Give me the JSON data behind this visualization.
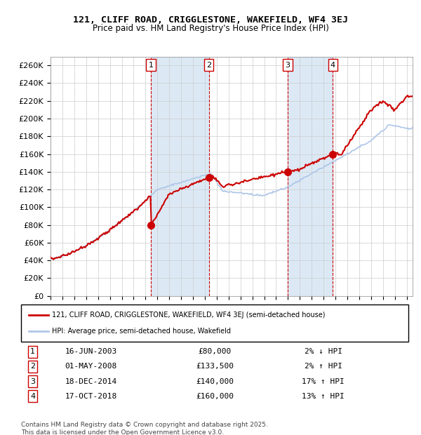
{
  "title": "121, CLIFF ROAD, CRIGGLESTONE, WAKEFIELD, WF4 3EJ",
  "subtitle": "Price paid vs. HM Land Registry's House Price Index (HPI)",
  "xlabel": "",
  "ylabel": "",
  "ylim": [
    0,
    270000
  ],
  "yticks": [
    0,
    20000,
    40000,
    60000,
    80000,
    100000,
    120000,
    140000,
    160000,
    180000,
    200000,
    220000,
    240000,
    260000
  ],
  "xlim_start": 1995.0,
  "xlim_end": 2025.5,
  "hpi_color": "#aec6e8",
  "price_color": "#cc0000",
  "sale_dot_color": "#cc0000",
  "vline_color": "#cc0000",
  "shade_color": "#dce9f5",
  "grid_color": "#cccccc",
  "legend_box_color": "#000000",
  "footer_text": "Contains HM Land Registry data © Crown copyright and database right 2025.\nThis data is licensed under the Open Government Licence v3.0.",
  "sales": [
    {
      "num": 1,
      "date_dec": 2003.46,
      "price": 80000,
      "label": "16-JUN-2003",
      "price_str": "£80,000",
      "pct": "2%",
      "dir": "↓"
    },
    {
      "num": 2,
      "date_dec": 2008.33,
      "price": 133500,
      "label": "01-MAY-2008",
      "price_str": "£133,500",
      "pct": "2%",
      "dir": "↑"
    },
    {
      "num": 3,
      "date_dec": 2014.96,
      "price": 140000,
      "label": "18-DEC-2014",
      "price_str": "£140,000",
      "pct": "17%",
      "dir": "↑"
    },
    {
      "num": 4,
      "date_dec": 2018.79,
      "price": 160000,
      "label": "17-OCT-2018",
      "price_str": "£160,000",
      "pct": "13%",
      "dir": "↑"
    }
  ],
  "legend_entries": [
    "121, CLIFF ROAD, CRIGGLESTONE, WAKEFIELD, WF4 3EJ (semi-detached house)",
    "HPI: Average price, semi-detached house, Wakefield"
  ]
}
